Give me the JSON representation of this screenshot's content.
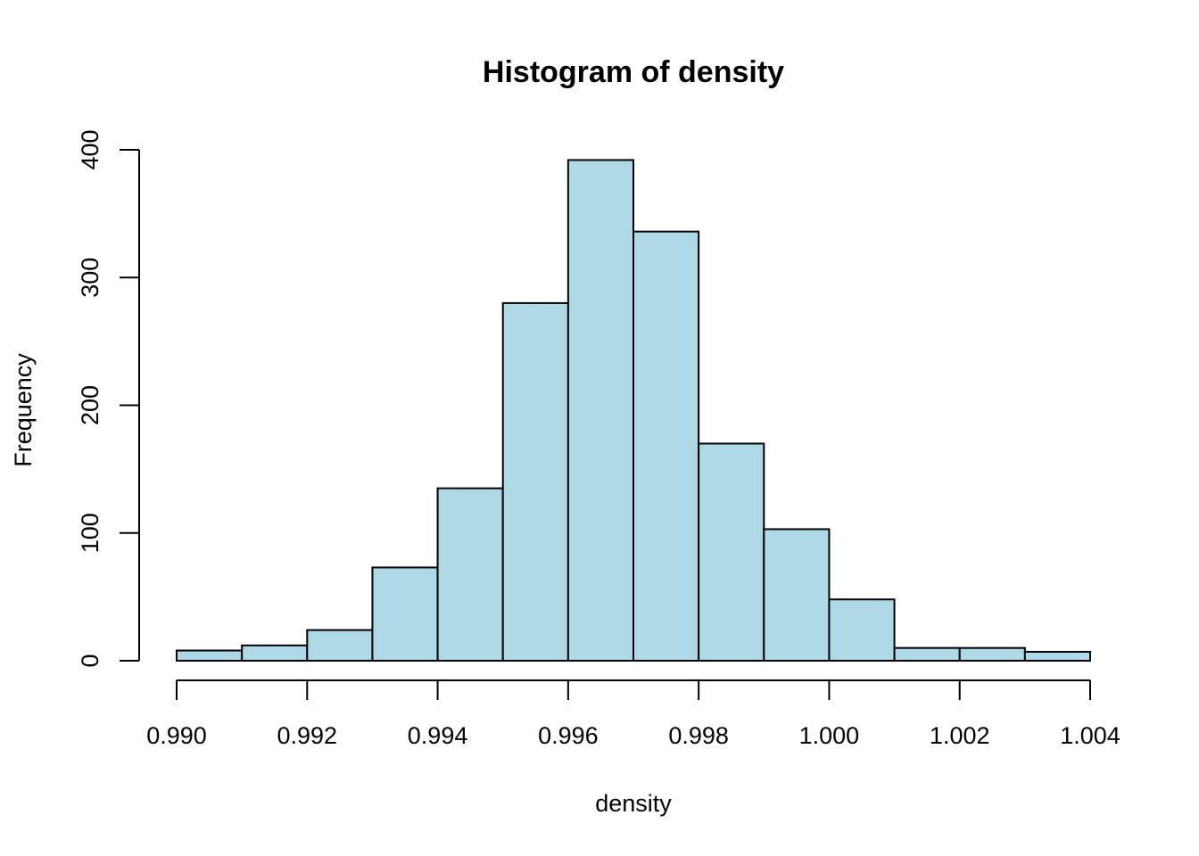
{
  "chart_data": {
    "type": "bar",
    "title": "Histogram of density",
    "xlabel": "density",
    "ylabel": "Frequency",
    "bin_edges": [
      0.99,
      0.991,
      0.992,
      0.993,
      0.994,
      0.995,
      0.996,
      0.997,
      0.998,
      0.999,
      1.0,
      1.001,
      1.002,
      1.003,
      1.004
    ],
    "values": [
      8,
      12,
      24,
      73,
      135,
      280,
      392,
      336,
      170,
      103,
      48,
      10,
      10,
      7
    ],
    "xlim": [
      0.99,
      1.004
    ],
    "ylim": [
      0,
      400
    ],
    "x_ticks": [
      "0.990",
      "0.992",
      "0.994",
      "0.996",
      "0.998",
      "1.000",
      "1.002",
      "1.004"
    ],
    "y_ticks": [
      "0",
      "100",
      "200",
      "300",
      "400"
    ],
    "bar_color": "#add8e6",
    "grid": false,
    "legend": "none"
  }
}
